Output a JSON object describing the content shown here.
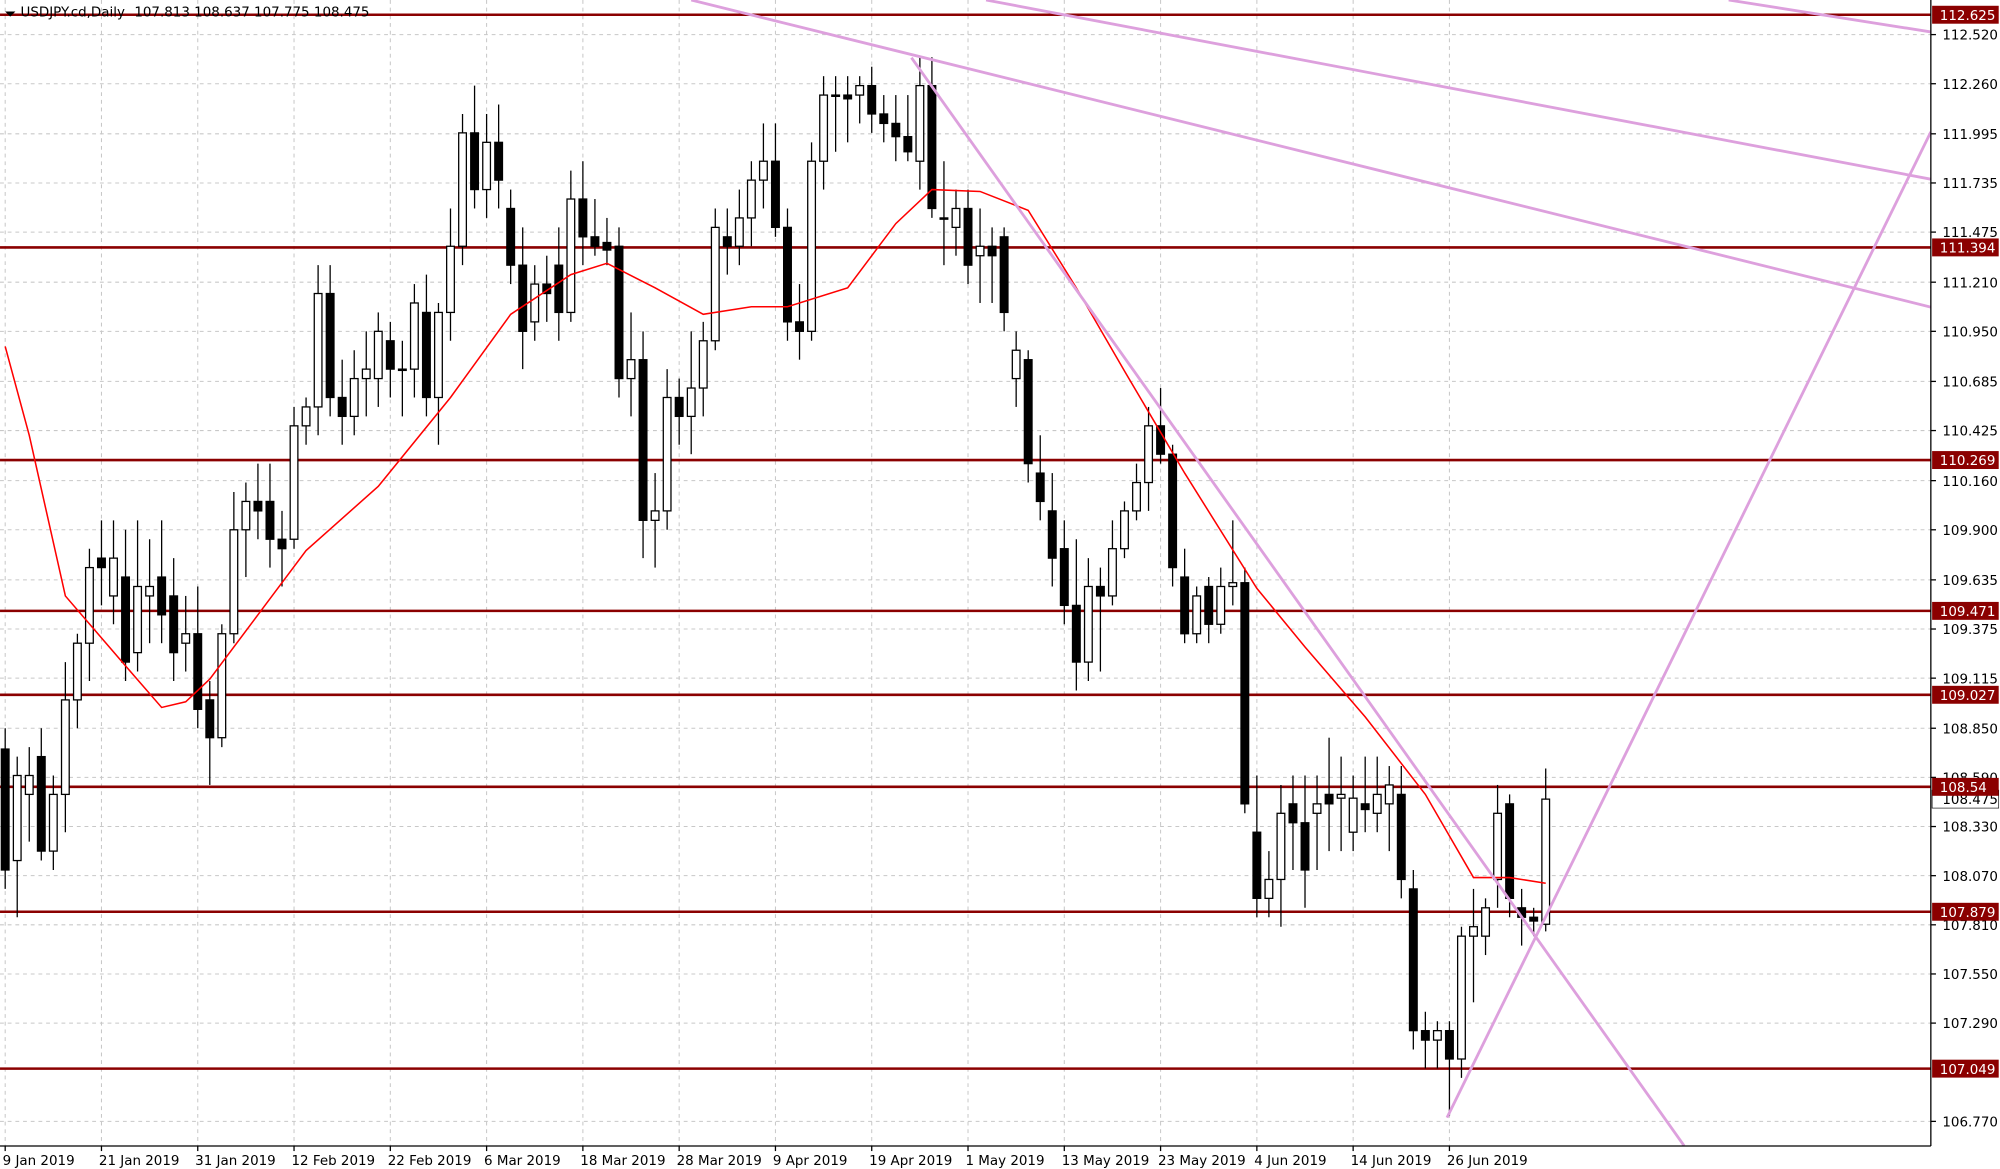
{
  "chart_data": {
    "type": "candlestick",
    "title": "USDJPY.cd,Daily",
    "categories": [
      "9 Jan 2019",
      null,
      null,
      null,
      null,
      null,
      null,
      null,
      "21 Jan 2019",
      null,
      null,
      null,
      null,
      null,
      null,
      null,
      "31 Jan 2019",
      null,
      null,
      null,
      null,
      null,
      null,
      null,
      "12 Feb 2019",
      null,
      null,
      null,
      null,
      null,
      null,
      null,
      "22 Feb 2019",
      null,
      null,
      null,
      null,
      null,
      null,
      null,
      "6 Mar 2019",
      null,
      null,
      null,
      null,
      null,
      null,
      null,
      "18 Mar 2019",
      null,
      null,
      null,
      null,
      null,
      null,
      null,
      "28 Mar 2019",
      null,
      null,
      null,
      null,
      null,
      null,
      null,
      "9 Apr 2019",
      null,
      null,
      null,
      null,
      null,
      null,
      null,
      "19 Apr 2019",
      null,
      null,
      null,
      null,
      null,
      null,
      null,
      "1 May 2019",
      null,
      null,
      null,
      null,
      null,
      null,
      null,
      "13 May 2019",
      null,
      null,
      null,
      null,
      null,
      null,
      null,
      "23 May 2019",
      null,
      null,
      null,
      null,
      null,
      null,
      null,
      "4 Jun 2019",
      null,
      null,
      null,
      null,
      null,
      null,
      null,
      "14 Jun 2019",
      null,
      null,
      null,
      null,
      null,
      null,
      null,
      "26 Jun 2019",
      null,
      null,
      null,
      null,
      null,
      null,
      null,
      null
    ],
    "open": [
      108.74,
      108.15,
      108.5,
      108.7,
      108.2,
      108.5,
      109.0,
      109.3,
      109.75,
      109.55,
      109.65,
      109.25,
      109.55,
      109.65,
      109.55,
      109.3,
      109.35,
      109.0,
      108.8,
      109.35,
      109.9,
      110.05,
      110.05,
      109.85,
      109.85,
      110.45,
      110.55,
      111.15,
      110.6,
      110.5,
      110.7,
      110.7,
      110.9,
      110.75,
      110.75,
      111.05,
      110.6,
      111.05,
      111.4,
      112.0,
      111.7,
      111.95,
      111.6,
      111.3,
      111.0,
      111.2,
      111.3,
      111.05,
      111.65,
      111.45,
      111.42,
      111.4,
      110.7,
      110.8,
      109.95,
      110.0,
      110.6,
      110.5,
      110.65,
      110.9,
      111.45,
      111.4,
      111.55,
      111.75,
      111.85,
      111.5,
      111.0,
      110.95,
      111.85,
      112.2,
      112.2,
      112.2,
      112.25,
      112.1,
      112.05,
      111.98,
      111.85,
      112.25,
      111.55,
      111.5,
      111.6,
      111.35,
      111.4,
      111.45,
      110.7,
      110.8,
      110.2,
      110.0,
      109.8,
      109.5,
      109.2,
      109.6,
      109.55,
      109.8,
      110.0,
      110.15,
      110.45,
      110.3,
      109.65,
      109.35,
      109.6,
      109.4,
      109.6,
      109.62,
      108.3,
      107.95,
      108.05,
      108.45,
      108.35,
      108.4,
      108.5,
      108.48,
      108.3,
      108.45,
      108.4,
      108.45,
      108.5,
      108.0,
      107.25,
      107.2,
      107.25,
      107.1,
      107.75,
      107.75,
      108.05,
      108.45,
      107.9,
      107.85,
      107.813
    ],
    "high": [
      108.85,
      108.7,
      108.75,
      108.85,
      108.6,
      109.2,
      109.35,
      109.8,
      109.95,
      109.95,
      109.9,
      109.95,
      109.85,
      109.95,
      109.75,
      109.55,
      109.6,
      109.1,
      109.4,
      110.1,
      110.15,
      110.25,
      110.25,
      110.0,
      110.55,
      110.6,
      111.3,
      111.3,
      110.8,
      110.85,
      110.95,
      111.05,
      111.0,
      110.9,
      111.2,
      111.25,
      111.1,
      111.6,
      112.1,
      112.25,
      112.1,
      112.15,
      111.7,
      111.5,
      111.3,
      111.35,
      111.5,
      111.8,
      111.85,
      111.65,
      111.55,
      111.5,
      111.05,
      110.95,
      110.2,
      110.75,
      110.7,
      110.95,
      111.0,
      111.6,
      111.6,
      111.7,
      111.85,
      112.05,
      112.05,
      111.6,
      111.2,
      111.95,
      112.3,
      112.3,
      112.3,
      112.3,
      112.35,
      112.2,
      112.2,
      112.2,
      112.4,
      112.4,
      111.85,
      111.7,
      111.7,
      111.6,
      111.5,
      111.5,
      110.95,
      110.85,
      110.4,
      110.2,
      109.95,
      109.85,
      109.75,
      109.7,
      109.95,
      110.05,
      110.25,
      110.55,
      110.65,
      110.35,
      109.8,
      109.6,
      109.65,
      109.7,
      109.95,
      109.7,
      108.6,
      108.2,
      108.55,
      108.6,
      108.6,
      108.6,
      108.8,
      108.7,
      108.6,
      108.7,
      108.7,
      108.65,
      108.65,
      108.1,
      107.35,
      107.3,
      107.3,
      107.8,
      108.0,
      107.95,
      108.55,
      108.5,
      108.0,
      107.9,
      108.637
    ],
    "low": [
      108.0,
      107.85,
      108.25,
      108.15,
      108.1,
      108.3,
      108.85,
      109.1,
      109.5,
      109.4,
      109.1,
      109.15,
      109.3,
      109.3,
      109.1,
      109.15,
      108.85,
      108.55,
      108.75,
      109.3,
      109.65,
      109.85,
      109.7,
      109.6,
      109.8,
      110.35,
      110.4,
      110.5,
      110.35,
      110.4,
      110.5,
      110.55,
      110.6,
      110.5,
      110.6,
      110.5,
      110.35,
      110.9,
      111.3,
      111.6,
      111.55,
      111.6,
      111.2,
      110.75,
      110.9,
      111.0,
      110.9,
      111.0,
      111.3,
      111.35,
      111.3,
      110.6,
      110.5,
      109.75,
      109.7,
      109.9,
      110.35,
      110.3,
      110.5,
      110.85,
      111.25,
      111.3,
      111.4,
      111.6,
      111.45,
      110.9,
      110.8,
      110.9,
      111.7,
      111.9,
      111.95,
      112.05,
      112.0,
      111.95,
      111.85,
      111.85,
      111.7,
      111.55,
      111.3,
      111.35,
      111.2,
      111.1,
      111.1,
      110.95,
      110.55,
      110.15,
      109.95,
      109.6,
      109.4,
      109.05,
      109.1,
      109.15,
      109.5,
      109.75,
      109.95,
      110.0,
      110.25,
      109.6,
      109.3,
      109.3,
      109.3,
      109.35,
      109.5,
      108.4,
      107.85,
      107.85,
      107.8,
      108.1,
      107.9,
      108.1,
      108.2,
      108.2,
      108.2,
      108.3,
      108.3,
      108.2,
      107.95,
      107.15,
      107.05,
      107.05,
      106.8,
      107.0,
      107.4,
      107.65,
      107.9,
      107.85,
      107.7,
      107.75,
      107.775
    ],
    "close": [
      108.1,
      108.6,
      108.6,
      108.2,
      108.5,
      109.0,
      109.3,
      109.7,
      109.7,
      109.75,
      109.2,
      109.6,
      109.6,
      109.45,
      109.25,
      109.35,
      108.95,
      108.8,
      109.35,
      109.9,
      110.05,
      110.0,
      109.85,
      109.8,
      110.45,
      110.55,
      111.15,
      110.6,
      110.5,
      110.7,
      110.75,
      110.95,
      110.75,
      110.75,
      111.1,
      110.6,
      111.05,
      111.4,
      112.0,
      111.7,
      111.95,
      111.75,
      111.3,
      110.95,
      111.2,
      111.15,
      111.05,
      111.65,
      111.45,
      111.4,
      111.38,
      110.7,
      110.8,
      109.95,
      110.0,
      110.6,
      110.5,
      110.65,
      110.9,
      111.5,
      111.4,
      111.55,
      111.75,
      111.85,
      111.5,
      111.0,
      110.95,
      111.85,
      112.2,
      112.2,
      112.18,
      112.25,
      112.1,
      112.05,
      111.98,
      111.9,
      112.25,
      111.6,
      111.55,
      111.6,
      111.3,
      111.4,
      111.35,
      111.05,
      110.85,
      110.25,
      110.05,
      109.75,
      109.5,
      109.2,
      109.6,
      109.55,
      109.8,
      110.0,
      110.15,
      110.45,
      110.3,
      109.7,
      109.35,
      109.55,
      109.4,
      109.6,
      109.62,
      108.45,
      107.95,
      108.05,
      108.4,
      108.35,
      108.1,
      108.45,
      108.45,
      108.5,
      108.48,
      108.42,
      108.5,
      108.55,
      108.05,
      107.25,
      107.2,
      107.25,
      107.1,
      107.75,
      107.8,
      107.9,
      108.4,
      107.95,
      107.85,
      107.83,
      108.475
    ],
    "up_color": "#ffffff",
    "down_color": "#000000",
    "ma": {
      "color": "#ff0000",
      "x": [
        0,
        2,
        5,
        10,
        13,
        15,
        17,
        21,
        25,
        31,
        37,
        42,
        47,
        50,
        54,
        58,
        62,
        65,
        70,
        74,
        77,
        81,
        85,
        89,
        93,
        98,
        104,
        108,
        113,
        118,
        122,
        125,
        128
      ],
      "values": [
        110.87,
        110.4,
        109.55,
        109.18,
        108.96,
        108.99,
        109.11,
        109.45,
        109.79,
        110.13,
        110.6,
        111.04,
        111.25,
        111.31,
        111.18,
        111.04,
        111.08,
        111.08,
        111.18,
        111.52,
        111.7,
        111.69,
        111.59,
        111.18,
        110.74,
        110.2,
        109.59,
        109.28,
        108.91,
        108.5,
        108.06,
        108.06,
        108.03
      ]
    },
    "trendlines": [
      {
        "color": "#dda0dd",
        "x": [
          57.0,
          160.0
        ],
        "values": [
          112.703,
          111.078
        ]
      },
      {
        "color": "#dda0dd",
        "x": [
          81.5,
          160.0
        ],
        "values": [
          112.703,
          111.755
        ]
      },
      {
        "color": "#dda0dd",
        "x": [
          143.2,
          160.0
        ],
        "values": [
          112.703,
          112.534
        ]
      },
      {
        "color": "#dda0dd",
        "x": [
          75.3,
          139.5
        ],
        "values": [
          112.398,
          106.641
        ]
      },
      {
        "color": "#dda0dd",
        "x": [
          119.8,
          160.0
        ],
        "values": [
          106.79,
          112.005
        ]
      }
    ],
    "levels": [
      112.625,
      111.394,
      110.269,
      109.471,
      109.027,
      108.54,
      107.879,
      107.049
    ],
    "level_color": "#8b0000",
    "xlim": [
      -0.43,
      160
    ],
    "ylim": [
      106.64,
      112.703
    ],
    "yticks": [
      {
        "value": 112.52,
        "label": "112.520"
      },
      {
        "value": 112.26,
        "label": "112.260"
      },
      111.995,
      111.735,
      111.475,
      {
        "value": 111.21,
        "label": "111.210"
      },
      {
        "value": 110.95,
        "label": "110.950"
      },
      110.685,
      110.425,
      {
        "value": 110.16,
        "label": "110.160"
      },
      {
        "value": 109.9,
        "label": "109.900"
      },
      109.635,
      109.375,
      109.115,
      {
        "value": 108.85,
        "label": "108.850"
      },
      {
        "value": 108.59,
        "label": "108.590"
      },
      {
        "value": 108.33,
        "label": "108.330"
      },
      {
        "value": 108.07,
        "label": "108.070"
      },
      {
        "value": 107.81,
        "label": "107.810"
      },
      {
        "value": 107.55,
        "label": "107.550"
      },
      {
        "value": 107.29,
        "label": "107.290"
      },
      {
        "value": 106.77,
        "label": "106.770"
      }
    ],
    "grid": true
  }
}
